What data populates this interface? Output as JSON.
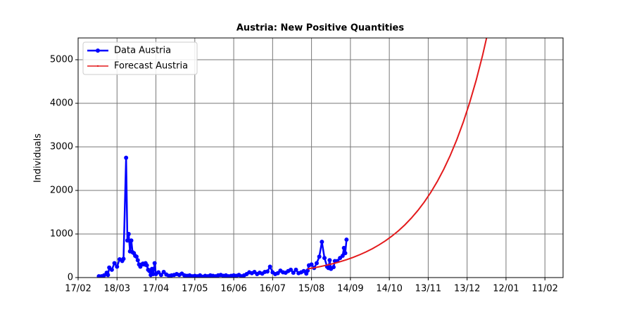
{
  "chart_data": {
    "type": "line",
    "title": "Austria: New Positive Quantities",
    "y_label": "Individuals",
    "grid": true,
    "legend": "upper left",
    "xlim": [
      0,
      374
    ],
    "ylim": [
      0,
      5500
    ],
    "xticks": [
      {
        "value": 0,
        "label": "17/02"
      },
      {
        "value": 30,
        "label": "18/03"
      },
      {
        "value": 60,
        "label": "17/04"
      },
      {
        "value": 90,
        "label": "17/05"
      },
      {
        "value": 120,
        "label": "16/06"
      },
      {
        "value": 150,
        "label": "16/07"
      },
      {
        "value": 180,
        "label": "15/08"
      },
      {
        "value": 210,
        "label": "14/09"
      },
      {
        "value": 240,
        "label": "14/10"
      },
      {
        "value": 270,
        "label": "13/11"
      },
      {
        "value": 300,
        "label": "13/12"
      },
      {
        "value": 330,
        "label": "12/01"
      },
      {
        "value": 360,
        "label": "11/02"
      }
    ],
    "yticks": [
      0,
      1000,
      2000,
      3000,
      4000,
      5000
    ],
    "series": [
      {
        "name": "Data Austria",
        "color": "#0000ff",
        "markers": true,
        "x": [
          16,
          18,
          20,
          22,
          23,
          24,
          26,
          28,
          30,
          32,
          34,
          35,
          37,
          38,
          39,
          40,
          41,
          42,
          43,
          44,
          45,
          46,
          47,
          48,
          49,
          50,
          51,
          52,
          53,
          54,
          55,
          56,
          57,
          58,
          59,
          60,
          62,
          64,
          66,
          68,
          70,
          72,
          74,
          76,
          78,
          80,
          82,
          84,
          86,
          88,
          90,
          92,
          94,
          96,
          98,
          100,
          102,
          104,
          106,
          108,
          110,
          112,
          114,
          116,
          118,
          120,
          122,
          124,
          126,
          128,
          130,
          132,
          134,
          136,
          138,
          140,
          142,
          144,
          146,
          148,
          150,
          152,
          154,
          156,
          158,
          160,
          162,
          164,
          166,
          168,
          170,
          172,
          174,
          176,
          177,
          178,
          180,
          182,
          184,
          186,
          188,
          190,
          192,
          193,
          194,
          195,
          197,
          198,
          200,
          202,
          204,
          205,
          206,
          207
        ],
        "values": [
          30,
          30,
          50,
          110,
          60,
          230,
          180,
          330,
          250,
          420,
          380,
          430,
          2750,
          850,
          1000,
          600,
          850,
          580,
          560,
          500,
          480,
          400,
          300,
          250,
          300,
          320,
          300,
          330,
          280,
          180,
          150,
          60,
          200,
          80,
          330,
          80,
          120,
          60,
          130,
          70,
          40,
          50,
          60,
          80,
          60,
          90,
          50,
          40,
          50,
          30,
          40,
          30,
          50,
          20,
          40,
          30,
          50,
          40,
          30,
          50,
          60,
          40,
          50,
          30,
          40,
          50,
          40,
          60,
          30,
          50,
          80,
          120,
          100,
          130,
          80,
          110,
          90,
          130,
          140,
          250,
          120,
          80,
          100,
          160,
          120,
          110,
          150,
          180,
          110,
          180,
          100,
          120,
          150,
          90,
          160,
          280,
          300,
          220,
          330,
          480,
          820,
          450,
          250,
          220,
          400,
          200,
          240,
          380,
          380,
          450,
          500,
          680,
          560,
          870
        ]
      },
      {
        "name": "Forecast Austria",
        "color": "#e31a1c",
        "markers": false,
        "x": [
          177,
          182,
          187,
          192,
          197,
          202,
          207,
          212,
          217,
          222,
          227,
          232,
          237,
          242,
          247,
          252,
          257,
          262,
          267,
          272,
          277,
          282,
          287,
          292,
          297,
          302,
          307,
          312,
          317,
          322
        ],
        "values": [
          200,
          225,
          254,
          287,
          323,
          364,
          411,
          463,
          522,
          589,
          664,
          749,
          844,
          952,
          1073,
          1210,
          1365,
          1539,
          1735,
          1956,
          2205,
          2487,
          2804,
          3161,
          3564,
          4019,
          4531,
          5109,
          5761,
          6495
        ]
      }
    ]
  }
}
